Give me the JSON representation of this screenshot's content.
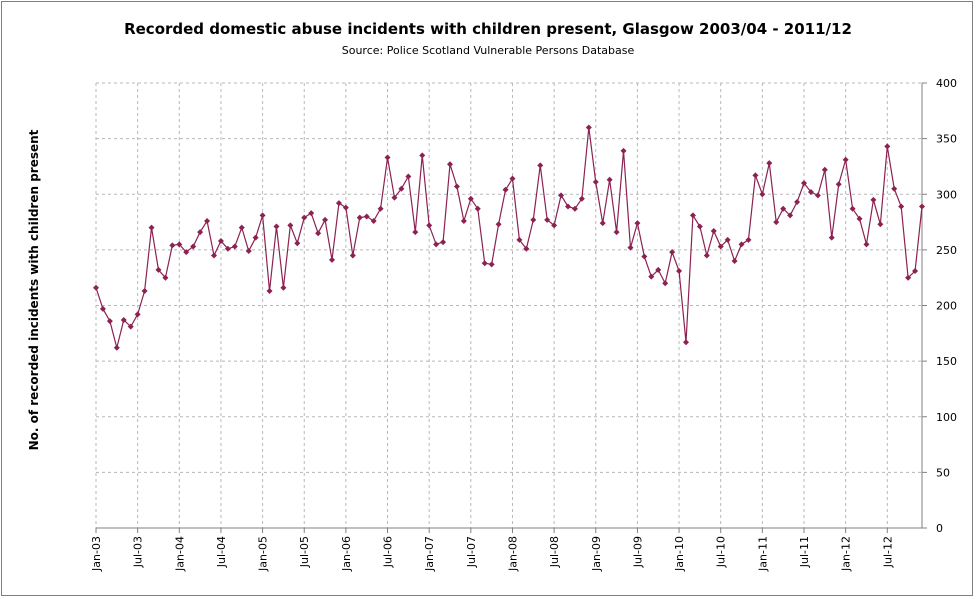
{
  "chart_data": {
    "type": "line",
    "title": "Recorded domestic abuse incidents with children present, Glasgow 2003/04 - 2011/12",
    "subtitle": "Source: Police Scotland Vulnerable Persons Database",
    "ylabel": "No. of recorded incidents with children present",
    "xlabel": "",
    "ylim": [
      0,
      400
    ],
    "yticks": [
      0,
      50,
      100,
      150,
      200,
      250,
      300,
      350,
      400
    ],
    "y_axis_side": "right",
    "grid": "dashed",
    "legend": "none",
    "x_start": "Apr-03",
    "x_tick_labels": [
      "Jan-03",
      "Jul-03",
      "Jan-04",
      "Jul-04",
      "Jan-05",
      "Jul-05",
      "Jan-06",
      "Jul-06",
      "Jan-07",
      "Jul-07",
      "Jan-08",
      "Jul-08",
      "Jan-09",
      "Jul-09",
      "Jan-10",
      "Jul-10",
      "Jan-11",
      "Jul-11",
      "Jan-12",
      "Jul-12"
    ],
    "series_color": "#8b2252",
    "series": [
      {
        "values": [
          216,
          197,
          186,
          162,
          187,
          181,
          192,
          213,
          270,
          232,
          225,
          254,
          255,
          248,
          253,
          266,
          276,
          245,
          258,
          251,
          253,
          270,
          249,
          261,
          281,
          213,
          271,
          216,
          272,
          256,
          279,
          283,
          265,
          277,
          241,
          292,
          288,
          245,
          279,
          280,
          276,
          287,
          333,
          297,
          305,
          316,
          266,
          335,
          272,
          255,
          257,
          327,
          307,
          276,
          296,
          287,
          238,
          237,
          273,
          304,
          314,
          259,
          251,
          277,
          326,
          277,
          272,
          299,
          289,
          287,
          296,
          360,
          311,
          274,
          313,
          266,
          339,
          252,
          274,
          244,
          226,
          232,
          220,
          248,
          231,
          167,
          281,
          271,
          245,
          267,
          253,
          259,
          240,
          255,
          259,
          317,
          300,
          328,
          275,
          287,
          281,
          293,
          310,
          302,
          299,
          322,
          261,
          309,
          331,
          287,
          278,
          255,
          295,
          273,
          343,
          305,
          289,
          225,
          231,
          289
        ]
      }
    ]
  }
}
